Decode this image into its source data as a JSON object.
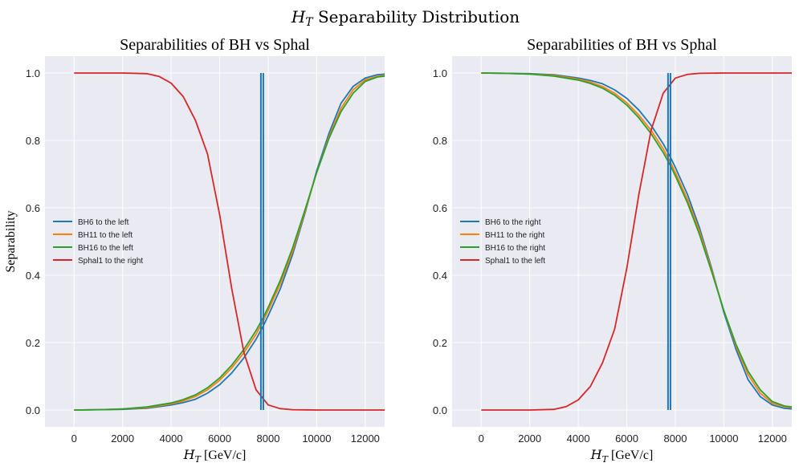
{
  "figure": {
    "title_var": "H",
    "title_sub": "T",
    "title_rest": " Separability Distribution"
  },
  "chart_data": [
    {
      "type": "line",
      "title": "Separabilities of BH vs Sphal",
      "xlabel_var": "H",
      "xlabel_sub": "T",
      "xlabel_unit": " [GeV/c]",
      "ylabel": "Separability",
      "xlim": [
        -1200,
        12800
      ],
      "ylim": [
        -0.05,
        1.05
      ],
      "xticks": [
        0,
        2000,
        4000,
        6000,
        8000,
        10000,
        12000
      ],
      "yticks": [
        0.0,
        0.2,
        0.4,
        0.6,
        0.8,
        1.0
      ],
      "ytick_labels": [
        "0.0",
        "0.2",
        "0.4",
        "0.6",
        "0.8",
        "1.0"
      ],
      "grid": true,
      "legend_position": "center-left",
      "vlines": [
        7700,
        7800
      ],
      "vline_color": "#1f77b4",
      "series": [
        {
          "name": "BH6 to the left",
          "color": "#1f77b4",
          "x": [
            0,
            1000,
            2000,
            3000,
            4000,
            4500,
            5000,
            5500,
            6000,
            6500,
            7000,
            7500,
            7800,
            8000,
            8500,
            9000,
            9500,
            10000,
            10500,
            11000,
            11500,
            12000,
            12500,
            12800
          ],
          "y": [
            0.0,
            0.001,
            0.002,
            0.005,
            0.015,
            0.022,
            0.032,
            0.05,
            0.075,
            0.11,
            0.155,
            0.21,
            0.25,
            0.28,
            0.36,
            0.46,
            0.58,
            0.71,
            0.82,
            0.91,
            0.96,
            0.985,
            0.995,
            0.997
          ]
        },
        {
          "name": "BH11 to the left",
          "color": "#ff7f0e",
          "x": [
            0,
            1000,
            2000,
            3000,
            4000,
            4500,
            5000,
            5500,
            6000,
            6500,
            7000,
            7500,
            7800,
            8000,
            8500,
            9000,
            9500,
            10000,
            10500,
            11000,
            11500,
            12000,
            12500,
            12800
          ],
          "y": [
            0.0,
            0.001,
            0.003,
            0.007,
            0.018,
            0.027,
            0.04,
            0.06,
            0.088,
            0.125,
            0.17,
            0.225,
            0.265,
            0.295,
            0.375,
            0.47,
            0.585,
            0.705,
            0.81,
            0.895,
            0.95,
            0.98,
            0.99,
            0.993
          ]
        },
        {
          "name": "BH16 to the left",
          "color": "#2ca02c",
          "x": [
            0,
            1000,
            2000,
            3000,
            4000,
            4500,
            5000,
            5500,
            6000,
            6500,
            7000,
            7500,
            7800,
            8000,
            8500,
            9000,
            9500,
            10000,
            10500,
            11000,
            11500,
            12000,
            12500,
            12800
          ],
          "y": [
            0.0,
            0.001,
            0.003,
            0.009,
            0.021,
            0.031,
            0.045,
            0.066,
            0.095,
            0.133,
            0.18,
            0.236,
            0.275,
            0.305,
            0.385,
            0.48,
            0.59,
            0.705,
            0.805,
            0.885,
            0.94,
            0.975,
            0.988,
            0.991
          ]
        },
        {
          "name": "Sphal1 to the right",
          "color": "#d62728",
          "x": [
            0,
            1000,
            2000,
            3000,
            3500,
            4000,
            4500,
            5000,
            5500,
            6000,
            6500,
            7000,
            7500,
            8000,
            8500,
            9000,
            10000,
            11000,
            12000,
            12800
          ],
          "y": [
            1.0,
            1.0,
            1.0,
            0.998,
            0.99,
            0.97,
            0.93,
            0.86,
            0.76,
            0.58,
            0.36,
            0.17,
            0.06,
            0.015,
            0.004,
            0.001,
            0.0,
            0.0,
            0.0,
            0.0
          ]
        }
      ]
    },
    {
      "type": "line",
      "title": "Separabilities of BH vs Sphal",
      "xlabel_var": "H",
      "xlabel_sub": "T",
      "xlabel_unit": " [GeV/c]",
      "ylabel": "",
      "xlim": [
        -1200,
        12800
      ],
      "ylim": [
        -0.05,
        1.05
      ],
      "xticks": [
        0,
        2000,
        4000,
        6000,
        8000,
        10000,
        12000
      ],
      "yticks": [
        0.0,
        0.2,
        0.4,
        0.6,
        0.8,
        1.0
      ],
      "ytick_labels": [
        "0.0",
        "0.2",
        "0.4",
        "0.6",
        "0.8",
        "1.0"
      ],
      "grid": true,
      "legend_position": "center-left",
      "vlines": [
        7700,
        7800
      ],
      "vline_color": "#1f77b4",
      "series": [
        {
          "name": "BH6 to the right",
          "color": "#1f77b4",
          "x": [
            0,
            1000,
            2000,
            3000,
            4000,
            4500,
            5000,
            5500,
            6000,
            6500,
            7000,
            7500,
            7800,
            8000,
            8500,
            9000,
            9500,
            10000,
            10500,
            11000,
            11500,
            12000,
            12500,
            12800
          ],
          "y": [
            1.0,
            0.999,
            0.998,
            0.995,
            0.985,
            0.978,
            0.968,
            0.95,
            0.925,
            0.89,
            0.845,
            0.79,
            0.75,
            0.72,
            0.64,
            0.54,
            0.42,
            0.29,
            0.18,
            0.09,
            0.04,
            0.015,
            0.005,
            0.003
          ]
        },
        {
          "name": "BH11 to the right",
          "color": "#ff7f0e",
          "x": [
            0,
            1000,
            2000,
            3000,
            4000,
            4500,
            5000,
            5500,
            6000,
            6500,
            7000,
            7500,
            7800,
            8000,
            8500,
            9000,
            9500,
            10000,
            10500,
            11000,
            11500,
            12000,
            12500,
            12800
          ],
          "y": [
            1.0,
            0.999,
            0.997,
            0.993,
            0.982,
            0.973,
            0.96,
            0.94,
            0.912,
            0.875,
            0.83,
            0.775,
            0.735,
            0.705,
            0.625,
            0.53,
            0.415,
            0.295,
            0.19,
            0.105,
            0.05,
            0.02,
            0.01,
            0.007
          ]
        },
        {
          "name": "BH16 to the right",
          "color": "#2ca02c",
          "x": [
            0,
            1000,
            2000,
            3000,
            4000,
            4500,
            5000,
            5500,
            6000,
            6500,
            7000,
            7500,
            7800,
            8000,
            8500,
            9000,
            9500,
            10000,
            10500,
            11000,
            11500,
            12000,
            12500,
            12800
          ],
          "y": [
            1.0,
            0.999,
            0.997,
            0.991,
            0.979,
            0.969,
            0.955,
            0.934,
            0.905,
            0.867,
            0.82,
            0.764,
            0.725,
            0.695,
            0.615,
            0.52,
            0.41,
            0.295,
            0.195,
            0.115,
            0.06,
            0.025,
            0.012,
            0.009
          ]
        },
        {
          "name": "Sphal1 to the left",
          "color": "#d62728",
          "x": [
            0,
            1000,
            2000,
            3000,
            3500,
            4000,
            4500,
            5000,
            5500,
            6000,
            6500,
            7000,
            7500,
            8000,
            8500,
            9000,
            10000,
            11000,
            12000,
            12800
          ],
          "y": [
            0.0,
            0.0,
            0.0,
            0.002,
            0.01,
            0.03,
            0.07,
            0.14,
            0.24,
            0.42,
            0.64,
            0.83,
            0.94,
            0.985,
            0.996,
            0.999,
            1.0,
            1.0,
            1.0,
            1.0
          ]
        }
      ]
    }
  ]
}
